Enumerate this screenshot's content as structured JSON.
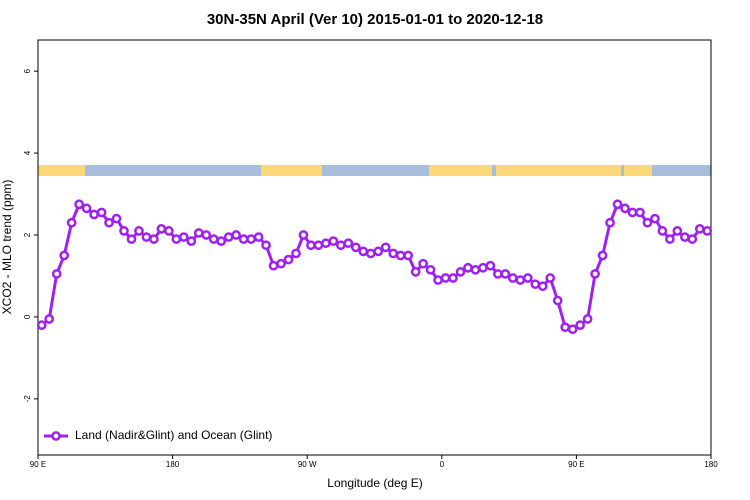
{
  "chart_data": {
    "type": "line",
    "title": "30N-35N April (Ver 10)   2015-01-01 to 2020-12-18",
    "x_label": "Longitude (deg E)",
    "y_label": "XCO2 - MLO trend (ppm)",
    "xlim": [
      90,
      540
    ],
    "ylim": [
      -3.37,
      6.76
    ],
    "xticks": [
      {
        "value": 90,
        "label": "90 E"
      },
      180,
      {
        "value": 270,
        "label": "90 W"
      },
      {
        "value": 360,
        "label": "0"
      },
      {
        "value": 450,
        "label": "90 E"
      },
      {
        "value": 540,
        "label": "180"
      }
    ],
    "yticks": [
      -2,
      0,
      2,
      4,
      6
    ],
    "legend": "bottom-left",
    "x": [
      92.5,
      97.5,
      102.5,
      107.5,
      112.5,
      117.5,
      122.5,
      127.5,
      132.5,
      137.5,
      142.5,
      147.5,
      152.5,
      157.5,
      162.5,
      167.5,
      172.5,
      177.5,
      182.5,
      187.5,
      192.5,
      197.5,
      202.5,
      207.5,
      212.5,
      217.5,
      222.5,
      227.5,
      232.5,
      237.5,
      242.5,
      247.5,
      252.5,
      257.5,
      262.5,
      267.5,
      272.5,
      277.5,
      282.5,
      287.5,
      292.5,
      297.5,
      302.5,
      307.5,
      312.5,
      317.5,
      322.5,
      327.5,
      332.5,
      337.5,
      342.5,
      347.5,
      352.5,
      357.5,
      362.5,
      367.5,
      372.5,
      377.5,
      382.5,
      387.5,
      392.5,
      397.5,
      402.5,
      407.5,
      412.5,
      417.5,
      422.5,
      427.5,
      432.5,
      437.5,
      442.5,
      447.5,
      452.5,
      457.5,
      462.5,
      467.5,
      472.5,
      477.5,
      482.5,
      487.5,
      492.5,
      497.5,
      502.5,
      507.5,
      512.5,
      517.5,
      522.5,
      527.5,
      532.5,
      537.5
    ],
    "series": [
      {
        "name": "Land (Nadir&Glint) and Ocean (Glint)",
        "color": "#a020f0",
        "values": [
          -0.2,
          -0.05,
          1.05,
          1.5,
          2.3,
          2.75,
          2.65,
          2.5,
          2.55,
          2.3,
          2.4,
          2.1,
          1.9,
          2.1,
          1.95,
          1.9,
          2.15,
          2.1,
          1.9,
          1.95,
          1.85,
          2.05,
          2.0,
          1.9,
          1.85,
          1.95,
          2.0,
          1.9,
          1.9,
          1.95,
          1.75,
          1.25,
          1.3,
          1.4,
          1.55,
          2.0,
          1.75,
          1.75,
          1.8,
          1.85,
          1.75,
          1.8,
          1.7,
          1.6,
          1.55,
          1.6,
          1.7,
          1.55,
          1.5,
          1.5,
          1.1,
          1.3,
          1.15,
          0.9,
          0.95,
          0.95,
          1.1,
          1.2,
          1.15,
          1.2,
          1.25,
          1.05,
          1.05,
          0.95,
          0.9,
          0.95,
          0.8,
          0.75,
          0.95,
          0.4,
          -0.25,
          -0.3,
          -0.2,
          -0.05,
          1.05,
          1.5,
          2.3,
          2.75,
          2.65,
          2.55,
          2.55,
          2.3,
          2.4,
          2.1,
          1.9,
          2.1,
          1.95,
          1.9,
          2.15,
          2.1
        ]
      }
    ]
  }
}
